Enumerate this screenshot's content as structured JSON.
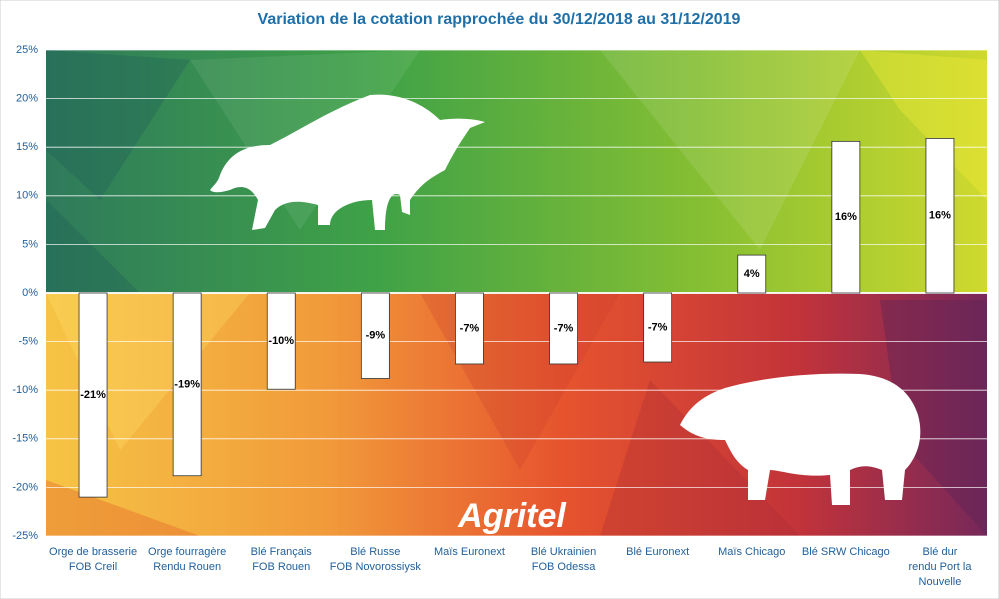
{
  "chart_data": {
    "type": "bar",
    "title": "Variation de la cotation rapprochée du 30/12/2018 au 31/12/2019",
    "categories": [
      [
        "Orge de brasserie",
        "FOB Creil"
      ],
      [
        "Orge fourragère",
        "Rendu Rouen"
      ],
      [
        "Blé Français",
        "FOB Rouen"
      ],
      [
        "Blé Russe",
        "FOB Novorossiysk"
      ],
      [
        "Maïs Euronext"
      ],
      [
        "Blé Ukrainien",
        "FOB Odessa"
      ],
      [
        "Blé Euronext"
      ],
      [
        "Maïs Chicago"
      ],
      [
        "Blé  SRW Chicago"
      ],
      [
        "Blé dur",
        "rendu Port la",
        "Nouvelle"
      ]
    ],
    "values": [
      -21,
      -18.8,
      -9.9,
      -8.8,
      -7.3,
      -7.3,
      -7.1,
      3.9,
      15.6,
      15.9
    ],
    "value_labels": [
      "-21%",
      "-19%",
      "-10%",
      "-9%",
      "-7%",
      "-7%",
      "-7%",
      "4%",
      "16%",
      "16%"
    ],
    "color": "#ffffff",
    "ylim": [
      -25,
      25
    ],
    "yticks": [
      {
        "value": 25,
        "label": "25%"
      },
      {
        "value": 20,
        "label": "20%"
      },
      {
        "value": 15,
        "label": "15%"
      },
      {
        "value": 10,
        "label": "10%"
      },
      {
        "value": 5,
        "label": "5%"
      },
      {
        "value": 0,
        "label": "0%"
      },
      {
        "value": -5,
        "label": "-5%"
      },
      {
        "value": -10,
        "label": "-10%"
      },
      {
        "value": -15,
        "label": "-15%"
      },
      {
        "value": -20,
        "label": "-20%"
      },
      {
        "value": -25,
        "label": "-25%"
      }
    ],
    "grid": true
  },
  "logo": "Agritel"
}
